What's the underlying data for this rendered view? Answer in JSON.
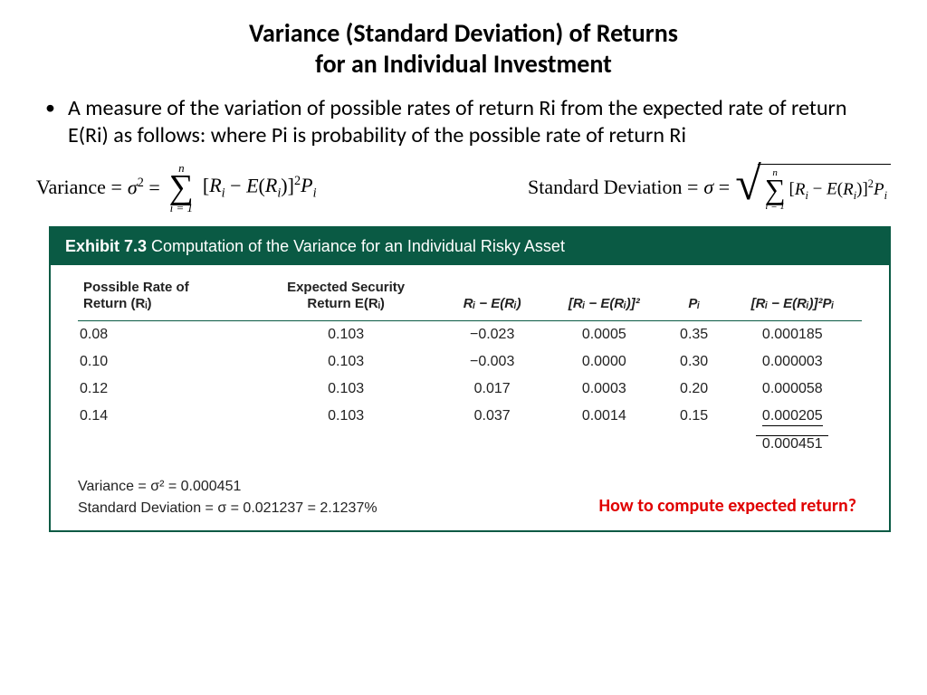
{
  "title_line1": "Variance (Standard Deviation) of Returns",
  "title_line2": "for an Individual Investment",
  "bullet_text": "A measure of the variation of possible rates of return Ri from the expected rate of return E(Ri) as follows: where Pi is probability of the possible rate of return Ri",
  "formula_variance_label": "Variance =",
  "formula_stdev_label": "Standard Deviation =",
  "sigma_upper": "n",
  "sigma_lower": "i = 1",
  "exhibit": {
    "header_bold": "Exhibit 7.3",
    "header_rest": " Computation of the Variance for an Individual Risky Asset",
    "header_bg": "#0a5a44",
    "header_fg": "#ffffff",
    "columns": [
      "Possible Rate of\nReturn (Rᵢ)",
      "Expected Security\nReturn E(Rᵢ)",
      "Rᵢ − E(Rᵢ)",
      "[Rᵢ − E(Rᵢ)]²",
      "Pᵢ",
      "[Rᵢ − E(Rᵢ)]²Pᵢ"
    ],
    "rows": [
      [
        "0.08",
        "0.103",
        "−0.023",
        "0.0005",
        "0.35",
        "0.000185"
      ],
      [
        "0.10",
        "0.103",
        "−0.003",
        "0.0000",
        "0.30",
        "0.000003"
      ],
      [
        "0.12",
        "0.103",
        "0.017",
        "0.0003",
        "0.20",
        "0.000058"
      ],
      [
        "0.14",
        "0.103",
        "0.037",
        "0.0014",
        "0.15",
        "0.000205"
      ]
    ],
    "total": "0.000451",
    "result_variance": "Variance = σ² = 0.000451",
    "result_stdev": "Standard Deviation = σ = 0.021237 = 2.1237%"
  },
  "red_question": "How to compute expected return?",
  "colors": {
    "red": "#e00000",
    "teal": "#0a5a44",
    "text": "#000000",
    "bg": "#ffffff"
  }
}
